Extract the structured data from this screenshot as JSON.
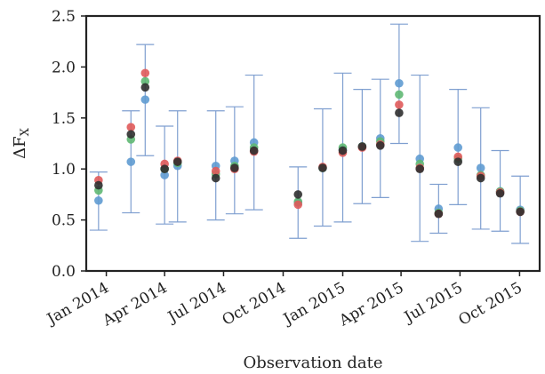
{
  "chart_data": {
    "type": "scatter",
    "title": "",
    "xlabel": "Observation date",
    "ylabel": "ΔF",
    "ylabel_subscript": "X",
    "xlim": [
      "2013-12-01",
      "2015-11-01"
    ],
    "ylim": [
      0.0,
      2.5
    ],
    "yticks": [
      {
        "value": 0.0,
        "label": "0.0"
      },
      {
        "value": 0.5,
        "label": "0.5"
      },
      {
        "value": 1.0,
        "label": "1.0"
      },
      {
        "value": 1.5,
        "label": "1.5"
      },
      {
        "value": 2.0,
        "label": "2.0"
      },
      {
        "value": 2.5,
        "label": "2.5"
      }
    ],
    "xticks": [
      {
        "value": "2014-01-01",
        "label": "Jan 2014"
      },
      {
        "value": "2014-04-01",
        "label": "Apr 2014"
      },
      {
        "value": "2014-07-01",
        "label": "Jul 2014"
      },
      {
        "value": "2014-10-01",
        "label": "Oct 2014"
      },
      {
        "value": "2015-01-01",
        "label": "Jan 2015"
      },
      {
        "value": "2015-04-01",
        "label": "Apr 2015"
      },
      {
        "value": "2015-07-01",
        "label": "Jul 2015"
      },
      {
        "value": "2015-10-01",
        "label": "Oct 2015"
      }
    ],
    "grid": false,
    "legend": "none",
    "colors": {
      "errorbar": "#7f9fd0",
      "blue": "#5f9bd1",
      "red": "#e05a5a",
      "green": "#5fb873",
      "dark": "#2f2f2f",
      "axis": "#222222"
    },
    "errorbars": [
      {
        "x": "2013-12-20",
        "low": 0.4,
        "high": 0.97
      },
      {
        "x": "2014-02-08",
        "low": 0.57,
        "high": 1.57
      },
      {
        "x": "2014-03-02",
        "low": 1.13,
        "high": 2.22
      },
      {
        "x": "2014-04-01",
        "low": 0.46,
        "high": 1.42
      },
      {
        "x": "2014-04-21",
        "low": 0.48,
        "high": 1.57
      },
      {
        "x": "2014-06-19",
        "low": 0.5,
        "high": 1.57
      },
      {
        "x": "2014-07-18",
        "low": 0.56,
        "high": 1.61
      },
      {
        "x": "2014-08-17",
        "low": 0.6,
        "high": 1.92
      },
      {
        "x": "2014-10-24",
        "low": 0.32,
        "high": 1.02
      },
      {
        "x": "2014-12-01",
        "low": 0.44,
        "high": 1.59
      },
      {
        "x": "2015-01-01",
        "low": 0.48,
        "high": 1.94
      },
      {
        "x": "2015-01-31",
        "low": 0.66,
        "high": 1.78
      },
      {
        "x": "2015-02-28",
        "low": 0.72,
        "high": 1.88
      },
      {
        "x": "2015-03-29",
        "low": 1.25,
        "high": 2.42
      },
      {
        "x": "2015-04-30",
        "low": 0.29,
        "high": 1.92
      },
      {
        "x": "2015-05-29",
        "low": 0.37,
        "high": 0.85
      },
      {
        "x": "2015-06-28",
        "low": 0.65,
        "high": 1.78
      },
      {
        "x": "2015-08-02",
        "low": 0.41,
        "high": 1.6
      },
      {
        "x": "2015-09-01",
        "low": 0.39,
        "high": 1.18
      },
      {
        "x": "2015-10-02",
        "low": 0.27,
        "high": 0.93
      }
    ],
    "series": [
      {
        "color": "blue",
        "points": [
          {
            "x": "2013-12-20",
            "y": 0.69
          },
          {
            "x": "2014-02-08",
            "y": 1.07
          },
          {
            "x": "2014-03-02",
            "y": 1.68
          },
          {
            "x": "2014-04-01",
            "y": 0.94
          },
          {
            "x": "2014-04-21",
            "y": 1.03
          },
          {
            "x": "2014-06-19",
            "y": 1.03
          },
          {
            "x": "2014-07-18",
            "y": 1.08
          },
          {
            "x": "2014-08-17",
            "y": 1.26
          },
          {
            "x": "2014-10-24",
            "y": 0.67
          },
          {
            "x": "2014-12-01",
            "y": 1.01
          },
          {
            "x": "2015-01-01",
            "y": 1.19
          },
          {
            "x": "2015-01-31",
            "y": 1.22
          },
          {
            "x": "2015-02-28",
            "y": 1.3
          },
          {
            "x": "2015-03-29",
            "y": 1.84
          },
          {
            "x": "2015-04-30",
            "y": 1.1
          },
          {
            "x": "2015-05-29",
            "y": 0.61
          },
          {
            "x": "2015-06-28",
            "y": 1.21
          },
          {
            "x": "2015-08-02",
            "y": 1.01
          },
          {
            "x": "2015-09-01",
            "y": 0.78
          },
          {
            "x": "2015-10-02",
            "y": 0.6
          }
        ]
      },
      {
        "color": "green",
        "points": [
          {
            "x": "2013-12-20",
            "y": 0.79
          },
          {
            "x": "2014-02-08",
            "y": 1.29
          },
          {
            "x": "2014-03-02",
            "y": 1.86
          },
          {
            "x": "2014-04-01",
            "y": 1.0
          },
          {
            "x": "2014-04-21",
            "y": 1.06
          },
          {
            "x": "2014-06-19",
            "y": 0.95
          },
          {
            "x": "2014-07-18",
            "y": 1.03
          },
          {
            "x": "2014-08-17",
            "y": 1.21
          },
          {
            "x": "2014-10-24",
            "y": 0.68
          },
          {
            "x": "2014-12-01",
            "y": 1.01
          },
          {
            "x": "2015-01-01",
            "y": 1.21
          },
          {
            "x": "2015-01-31",
            "y": 1.22
          },
          {
            "x": "2015-02-28",
            "y": 1.27
          },
          {
            "x": "2015-03-29",
            "y": 1.73
          },
          {
            "x": "2015-04-30",
            "y": 1.05
          },
          {
            "x": "2015-05-29",
            "y": 0.57
          },
          {
            "x": "2015-06-28",
            "y": 1.1
          },
          {
            "x": "2015-08-02",
            "y": 0.94
          },
          {
            "x": "2015-09-01",
            "y": 0.78
          },
          {
            "x": "2015-10-02",
            "y": 0.59
          }
        ]
      },
      {
        "color": "red",
        "points": [
          {
            "x": "2013-12-20",
            "y": 0.89
          },
          {
            "x": "2014-02-08",
            "y": 1.41
          },
          {
            "x": "2014-03-02",
            "y": 1.94
          },
          {
            "x": "2014-04-01",
            "y": 1.05
          },
          {
            "x": "2014-04-21",
            "y": 1.08
          },
          {
            "x": "2014-06-19",
            "y": 0.98
          },
          {
            "x": "2014-07-18",
            "y": 1.0
          },
          {
            "x": "2014-08-17",
            "y": 1.17
          },
          {
            "x": "2014-10-24",
            "y": 0.65
          },
          {
            "x": "2014-12-01",
            "y": 1.02
          },
          {
            "x": "2015-01-01",
            "y": 1.16
          },
          {
            "x": "2015-01-31",
            "y": 1.21
          },
          {
            "x": "2015-02-28",
            "y": 1.24
          },
          {
            "x": "2015-03-29",
            "y": 1.63
          },
          {
            "x": "2015-04-30",
            "y": 1.01
          },
          {
            "x": "2015-05-29",
            "y": 0.56
          },
          {
            "x": "2015-06-28",
            "y": 1.12
          },
          {
            "x": "2015-08-02",
            "y": 0.93
          },
          {
            "x": "2015-09-01",
            "y": 0.77
          },
          {
            "x": "2015-10-02",
            "y": 0.58
          }
        ]
      },
      {
        "color": "dark",
        "points": [
          {
            "x": "2013-12-20",
            "y": 0.84
          },
          {
            "x": "2014-02-08",
            "y": 1.34
          },
          {
            "x": "2014-03-02",
            "y": 1.8
          },
          {
            "x": "2014-04-01",
            "y": 1.0
          },
          {
            "x": "2014-04-21",
            "y": 1.07
          },
          {
            "x": "2014-06-19",
            "y": 0.91
          },
          {
            "x": "2014-07-18",
            "y": 1.01
          },
          {
            "x": "2014-08-17",
            "y": 1.18
          },
          {
            "x": "2014-10-24",
            "y": 0.75
          },
          {
            "x": "2014-12-01",
            "y": 1.01
          },
          {
            "x": "2015-01-01",
            "y": 1.18
          },
          {
            "x": "2015-01-31",
            "y": 1.22
          },
          {
            "x": "2015-02-28",
            "y": 1.23
          },
          {
            "x": "2015-03-29",
            "y": 1.55
          },
          {
            "x": "2015-04-30",
            "y": 1.0
          },
          {
            "x": "2015-05-29",
            "y": 0.56
          },
          {
            "x": "2015-06-28",
            "y": 1.07
          },
          {
            "x": "2015-08-02",
            "y": 0.91
          },
          {
            "x": "2015-09-01",
            "y": 0.76
          },
          {
            "x": "2015-10-02",
            "y": 0.58
          }
        ]
      }
    ]
  }
}
